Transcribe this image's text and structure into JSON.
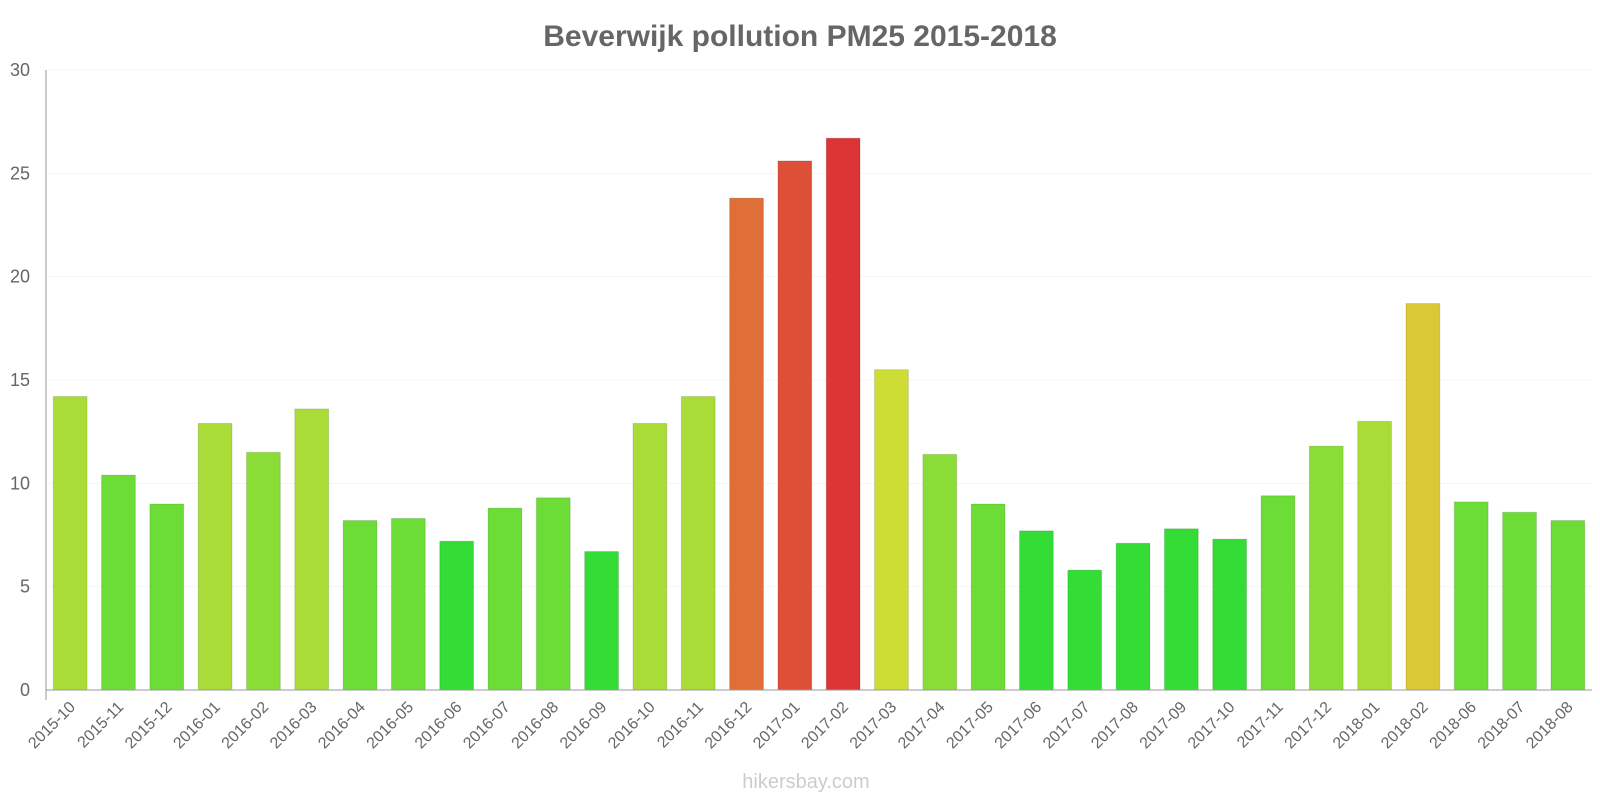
{
  "chart_data": {
    "type": "bar",
    "title": "Beverwijk pollution PM25 2015-2018",
    "xlabel": "",
    "ylabel": "",
    "ylim": [
      0,
      30
    ],
    "yticks": [
      0,
      5,
      10,
      15,
      20,
      25,
      30
    ],
    "grid": true,
    "categories": [
      "2015-10",
      "2015-11",
      "2015-12",
      "2016-01",
      "2016-02",
      "2016-03",
      "2016-04",
      "2016-05",
      "2016-06",
      "2016-07",
      "2016-08",
      "2016-09",
      "2016-10",
      "2016-11",
      "2016-12",
      "2017-01",
      "2017-02",
      "2017-03",
      "2017-04",
      "2017-05",
      "2017-06",
      "2017-07",
      "2017-08",
      "2017-09",
      "2017-10",
      "2017-11",
      "2017-12",
      "2018-01",
      "2018-02",
      "2018-06",
      "2018-07",
      "2018-08"
    ],
    "values": [
      14.2,
      10.4,
      9.0,
      12.9,
      11.5,
      13.6,
      8.2,
      8.3,
      7.2,
      8.8,
      9.3,
      6.7,
      12.9,
      14.2,
      23.8,
      25.6,
      26.7,
      15.5,
      11.4,
      9.0,
      7.7,
      5.8,
      7.1,
      7.8,
      7.3,
      9.4,
      11.8,
      13.0,
      18.7,
      9.1,
      8.6,
      8.2
    ],
    "colors": [
      "#a9dc36",
      "#6bdd36",
      "#6bdd36",
      "#a9dc36",
      "#8adc36",
      "#a9dc36",
      "#6bdd36",
      "#6bdd36",
      "#33dd36",
      "#6bdd36",
      "#6bdd36",
      "#33dd36",
      "#a9dc36",
      "#a9dc36",
      "#df6f36",
      "#dd4f36",
      "#dd3436",
      "#cddd36",
      "#8adc36",
      "#6bdd36",
      "#33dd36",
      "#33dd36",
      "#33dd36",
      "#33dd36",
      "#33dd36",
      "#6bdd36",
      "#8adc36",
      "#a9dc36",
      "#dbc836",
      "#6bdd36",
      "#6bdd36",
      "#6bdd36"
    ],
    "credit": "hikersbay.com"
  }
}
